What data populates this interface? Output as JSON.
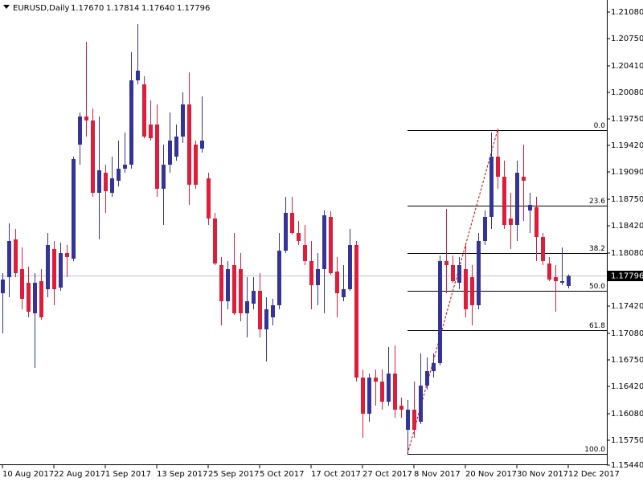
{
  "chart_data": {
    "type": "candlestick",
    "title": "EURUSD,Daily",
    "ohlc_labels": [
      "1.17670",
      "1.17814",
      "1.17640",
      "1.17796"
    ],
    "bull_color": "#333399",
    "bear_color": "#dd1d3a",
    "current_price_color": "#c0c0c0",
    "categories": [
      "10 Aug 2017",
      null,
      null,
      null,
      null,
      null,
      null,
      null,
      "22 Aug 2017",
      null,
      null,
      null,
      null,
      null,
      null,
      null,
      "1 Sep 2017",
      null,
      null,
      null,
      null,
      null,
      null,
      null,
      "13 Sep 2017",
      null,
      null,
      null,
      null,
      null,
      null,
      null,
      "25 Sep 2017",
      null,
      null,
      null,
      null,
      null,
      null,
      null,
      "5 Oct 2017",
      null,
      null,
      null,
      null,
      null,
      null,
      null,
      "17 Oct 2017",
      null,
      null,
      null,
      null,
      null,
      null,
      null,
      "27 Oct 2017",
      null,
      null,
      null,
      null,
      null,
      null,
      null,
      "8 Nov 2017",
      null,
      null,
      null,
      null,
      null,
      null,
      null,
      "20 Nov 2017",
      null,
      null,
      null,
      null,
      null,
      null,
      null,
      "30 Nov 2017",
      null,
      null,
      null,
      null,
      null,
      null,
      null,
      "12 Dec 2017"
    ],
    "open": [
      1.1758,
      1.1778,
      1.1825,
      1.1788,
      1.1771,
      1.1733,
      1.1773,
      1.1763,
      1.1813,
      1.1765,
      1.1808,
      1.1801,
      1.1943,
      1.1978,
      1.1973,
      1.1883,
      1.1908,
      1.1883,
      1.1898,
      1.1913,
      1.1918,
      1.2023,
      1.2018,
      1.1968,
      1.1968,
      1.1888,
      1.1918,
      1.1928,
      1.1953,
      1.1993,
      1.1943,
      1.1938,
      1.1901,
      1.1851,
      1.1793,
      1.1748,
      1.1793,
      1.1788,
      1.1733,
      1.1745,
      1.1761,
      1.1713,
      1.1728,
      1.1743,
      1.1811,
      1.1858,
      1.1833,
      1.1818,
      1.1798,
      1.1768,
      1.1788,
      1.1853,
      1.1785,
      1.1753,
      1.1763,
      1.1818,
      1.1653,
      1.1608,
      1.1653,
      1.1648,
      1.1623,
      1.1658,
      1.1618,
      1.1588,
      1.1613,
      1.1598,
      1.1643,
      1.1661,
      1.1671,
      1.1798,
      1.1793,
      1.1771,
      1.1788,
      1.1778,
      1.1743,
      1.1823,
      1.1853,
      1.1928,
      1.1903,
      1.1851,
      1.1843,
      1.1903,
      1.1861,
      1.1865,
      1.1828,
      1.1795,
      1.1778,
      1.1771,
      1.1767
    ],
    "high": [
      1.1783,
      1.1845,
      1.1838,
      1.1815,
      1.1791,
      1.1783,
      1.1788,
      1.1833,
      1.1823,
      1.1821,
      1.1818,
      1.1928,
      1.1983,
      1.2071,
      1.1988,
      1.1978,
      1.1918,
      1.1928,
      1.1948,
      1.1958,
      1.2058,
      1.2093,
      1.2028,
      1.1998,
      1.1993,
      1.1943,
      1.1983,
      1.1968,
      1.2008,
      1.2033,
      1.1948,
      1.2003,
      1.1908,
      1.1858,
      1.1803,
      1.1798,
      1.1833,
      1.1808,
      1.1778,
      1.1778,
      1.1783,
      1.1753,
      1.1751,
      1.1833,
      1.1878,
      1.1878,
      1.1848,
      1.1843,
      1.1823,
      1.1808,
      1.1861,
      1.186,
      1.1803,
      1.1793,
      1.1838,
      1.1823,
      1.1663,
      1.1658,
      1.1663,
      1.1663,
      1.1691,
      1.1693,
      1.1628,
      1.1625,
      1.1648,
      1.1683,
      1.1678,
      1.1683,
      1.1805,
      1.1863,
      1.1805,
      1.1803,
      1.1818,
      1.1793,
      1.1833,
      1.1861,
      1.1958,
      1.1963,
      1.1923,
      1.1883,
      1.1923,
      1.1943,
      1.1883,
      1.1878,
      1.1833,
      1.1803,
      1.1793,
      1.1815,
      1.17814
    ],
    "low": [
      1.1708,
      1.1753,
      1.1778,
      1.1738,
      1.1728,
      1.1665,
      1.1725,
      1.1753,
      1.1743,
      1.1761,
      1.1778,
      1.1798,
      1.1918,
      1.1953,
      1.1878,
      1.1825,
      1.1858,
      1.1878,
      1.1891,
      1.1908,
      1.1913,
      1.2018,
      1.1951,
      1.1948,
      1.1878,
      1.1843,
      1.1908,
      1.1923,
      1.1945,
      1.1868,
      1.1888,
      1.1933,
      1.1843,
      1.1793,
      1.1718,
      1.1738,
      1.1731,
      1.1723,
      1.1703,
      1.1738,
      1.1703,
      1.1673,
      1.1718,
      1.1738,
      1.1808,
      1.1831,
      1.1818,
      1.1793,
      1.1738,
      1.1743,
      1.1733,
      1.1781,
      1.1728,
      1.1748,
      1.1761,
      1.1648,
      1.1578,
      1.1598,
      1.1618,
      1.1613,
      1.1618,
      1.1603,
      1.1603,
      1.1558,
      1.1578,
      1.1595,
      1.1638,
      1.1653,
      1.1668,
      1.1758,
      1.1771,
      1.1763,
      1.1728,
      1.1718,
      1.1738,
      1.1818,
      1.1838,
      1.1888,
      1.1838,
      1.1813,
      1.1823,
      1.1848,
      1.1833,
      1.1798,
      1.1793,
      1.1773,
      1.1735,
      1.1768,
      1.1764
    ],
    "close": [
      1.1775,
      1.1823,
      1.1783,
      1.1751,
      1.1735,
      1.1771,
      1.1728,
      1.1818,
      1.1763,
      1.1808,
      1.1803,
      1.1925,
      1.1978,
      1.1973,
      1.1883,
      1.1911,
      1.1885,
      1.1901,
      1.1913,
      1.1918,
      1.2023,
      1.2035,
      1.1953,
      1.1951,
      1.1888,
      1.1918,
      1.1948,
      1.1953,
      1.1993,
      1.1893,
      1.1893,
      1.1948,
      1.1851,
      1.1795,
      1.1748,
      1.1788,
      1.1733,
      1.1733,
      1.1748,
      1.1761,
      1.1713,
      1.1738,
      1.1743,
      1.1811,
      1.1858,
      1.1833,
      1.1823,
      1.1798,
      1.1768,
      1.1788,
      1.1855,
      1.1783,
      1.1758,
      1.1763,
      1.1818,
      1.1653,
      1.1608,
      1.1653,
      1.1648,
      1.1623,
      1.1658,
      1.1613,
      1.1613,
      1.1613,
      1.1588,
      1.1643,
      1.1661,
      1.1671,
      1.1798,
      1.1793,
      1.1773,
      1.1793,
      1.1738,
      1.1743,
      1.1823,
      1.1853,
      1.1928,
      1.1903,
      1.1843,
      1.1843,
      1.1908,
      1.1898,
      1.1868,
      1.1828,
      1.1798,
      1.1775,
      1.1773,
      1.1773,
      1.17796
    ],
    "ylim": [
      1.1545,
      1.2123
    ],
    "yticks": [
      {
        "value": 1.2108,
        "label": "1.21080"
      },
      {
        "value": 1.2075,
        "label": "1.20750"
      },
      {
        "value": 1.2041,
        "label": "1.20410"
      },
      {
        "value": 1.2008,
        "label": "1.20080"
      },
      {
        "value": 1.1975,
        "label": "1.19750"
      },
      {
        "value": 1.1942,
        "label": "1.19420"
      },
      {
        "value": 1.1909,
        "label": "1.19090"
      },
      {
        "value": 1.1875,
        "label": "1.18750"
      },
      {
        "value": 1.1842,
        "label": "1.18420"
      },
      {
        "value": 1.1808,
        "label": "1.18080"
      },
      {
        "value": 1.1742,
        "label": "1.17420"
      },
      {
        "value": 1.1708,
        "label": "1.17080"
      },
      {
        "value": 1.1675,
        "label": "1.16750"
      },
      {
        "value": 1.1642,
        "label": "1.16420"
      },
      {
        "value": 1.1608,
        "label": "1.16080"
      },
      {
        "value": 1.1575,
        "label": "1.15750"
      },
      {
        "value": 1.1544,
        "label": "1.15440"
      }
    ],
    "fibonacci": {
      "color": "#cc0000",
      "levels": [
        {
          "label": "0.0",
          "value": 1.1961
        },
        {
          "label": "23.6",
          "value": 1.1867
        },
        {
          "label": "38.2",
          "value": 1.1808
        },
        {
          "label": "50.0",
          "value": 1.1761
        },
        {
          "label": "61.8",
          "value": 1.1712
        },
        {
          "label": "100.0",
          "value": 1.1558
        }
      ]
    }
  }
}
